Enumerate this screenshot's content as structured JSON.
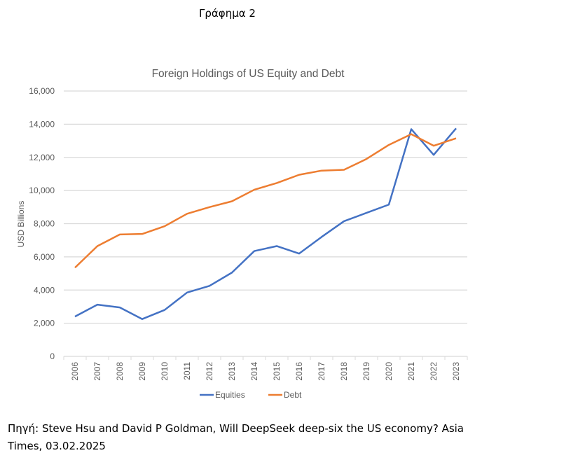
{
  "header": "Γράφημα 2",
  "source": "Πηγή:  Steve Hsu and David P Goldman, Will DeepSeek deep-six the US economy?  Asia Times, 03.02.2025",
  "chart_data": {
    "type": "line",
    "title": "Foreign Holdings of US Equity and Debt",
    "xlabel": "",
    "ylabel": "USD Billions",
    "ylim": [
      0,
      16000
    ],
    "yticks": [
      0,
      2000,
      4000,
      6000,
      8000,
      10000,
      12000,
      14000,
      16000
    ],
    "ytick_labels": [
      "0",
      "2,000",
      "4,000",
      "6,000",
      "8,000",
      "10,000",
      "12,000",
      "14,000",
      "16,000"
    ],
    "categories": [
      "2006",
      "2007",
      "2008",
      "2009",
      "2010",
      "2011",
      "2012",
      "2013",
      "2014",
      "2015",
      "2016",
      "2017",
      "2018",
      "2019",
      "2020",
      "2021",
      "2022",
      "2023"
    ],
    "grid": true,
    "legend": "bottom",
    "series": [
      {
        "name": "Equities",
        "color": "#4472C4",
        "values": [
          2400,
          3120,
          2950,
          2250,
          2800,
          3850,
          4250,
          5050,
          6350,
          6650,
          6200,
          7200,
          8150,
          8650,
          9150,
          13700,
          12150,
          13750
        ]
      },
      {
        "name": "Debt",
        "color": "#ED7D31",
        "values": [
          5350,
          6650,
          7350,
          7380,
          7850,
          8600,
          9000,
          9350,
          10050,
          10450,
          10950,
          11200,
          11250,
          11900,
          12750,
          13400,
          12700,
          13150
        ]
      }
    ]
  }
}
